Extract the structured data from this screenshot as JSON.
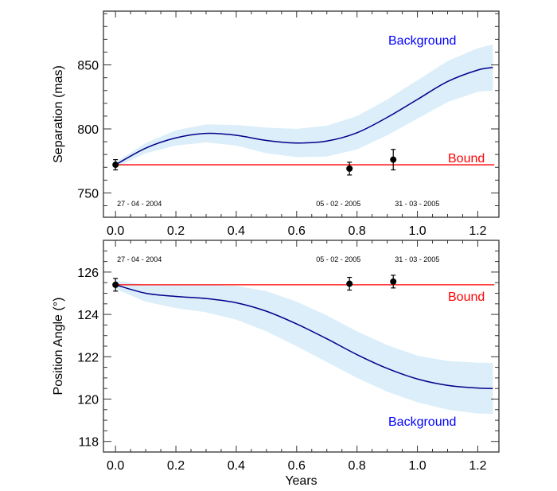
{
  "chart_data": [
    {
      "type": "line",
      "title": "",
      "xlabel": "",
      "ylabel": "Separation (mas)",
      "xlim": [
        -0.04,
        1.27
      ],
      "ylim": [
        731,
        892
      ],
      "xticks": [
        "0.0",
        "0.2",
        "0.4",
        "0.6",
        "0.8",
        "1.0",
        "1.2"
      ],
      "yticks": [
        "750",
        "800",
        "850"
      ],
      "ytick_values": [
        750,
        800,
        850
      ],
      "background": {
        "label": "Background",
        "x": [
          0,
          0.1,
          0.2,
          0.3,
          0.4,
          0.5,
          0.6,
          0.7,
          0.8,
          0.9,
          1.0,
          1.1,
          1.2,
          1.25
        ],
        "y": [
          772,
          785,
          793,
          796.5,
          795,
          791,
          789,
          790.5,
          797,
          809,
          823,
          837,
          846,
          848
        ],
        "err": [
          2,
          4,
          6,
          7,
          8,
          10,
          11,
          12,
          13,
          14,
          15,
          16,
          17,
          18
        ]
      },
      "bound": {
        "label": "Bound",
        "y": 772
      },
      "points": [
        {
          "x": 0.0,
          "y": 772,
          "err": 4,
          "date": "27 - 04 - 2004"
        },
        {
          "x": 0.775,
          "y": 769,
          "err": 5,
          "date": "05 - 02 - 2005"
        },
        {
          "x": 0.92,
          "y": 776,
          "err": 8,
          "date": "31 - 03 - 2005"
        }
      ]
    },
    {
      "type": "line",
      "title": "",
      "xlabel": "Years",
      "ylabel": "Position Angle (°)",
      "xlim": [
        -0.04,
        1.27
      ],
      "ylim": [
        117.5,
        127.5
      ],
      "xticks": [
        "0.0",
        "0.2",
        "0.4",
        "0.6",
        "0.8",
        "1.0",
        "1.2"
      ],
      "yticks": [
        "118",
        "120",
        "122",
        "124",
        "126"
      ],
      "ytick_values": [
        118,
        120,
        122,
        124,
        126
      ],
      "background": {
        "label": "Background",
        "x": [
          0,
          0.1,
          0.2,
          0.3,
          0.4,
          0.5,
          0.6,
          0.7,
          0.8,
          0.9,
          1.0,
          1.1,
          1.2,
          1.25
        ],
        "y": [
          125.4,
          125.0,
          124.85,
          124.75,
          124.55,
          124.15,
          123.55,
          122.85,
          122.1,
          121.45,
          120.95,
          120.65,
          120.52,
          120.5
        ],
        "err": [
          0.2,
          0.4,
          0.55,
          0.65,
          0.8,
          0.95,
          1.05,
          1.1,
          1.1,
          1.1,
          1.1,
          1.15,
          1.2,
          1.2
        ]
      },
      "bound": {
        "label": "Bound",
        "y": 125.4
      },
      "points": [
        {
          "x": 0.0,
          "y": 125.4,
          "err": 0.3,
          "date": "27 - 04 - 2004"
        },
        {
          "x": 0.775,
          "y": 125.45,
          "err": 0.3,
          "date": "05 - 02 - 2005"
        },
        {
          "x": 0.92,
          "y": 125.55,
          "err": 0.3,
          "date": "31 - 03 - 2005"
        }
      ]
    }
  ],
  "colors": {
    "background_line": "#00008b",
    "band": "#dbeef9",
    "bound": "#ff0000",
    "bg_label": "#0000ff"
  }
}
